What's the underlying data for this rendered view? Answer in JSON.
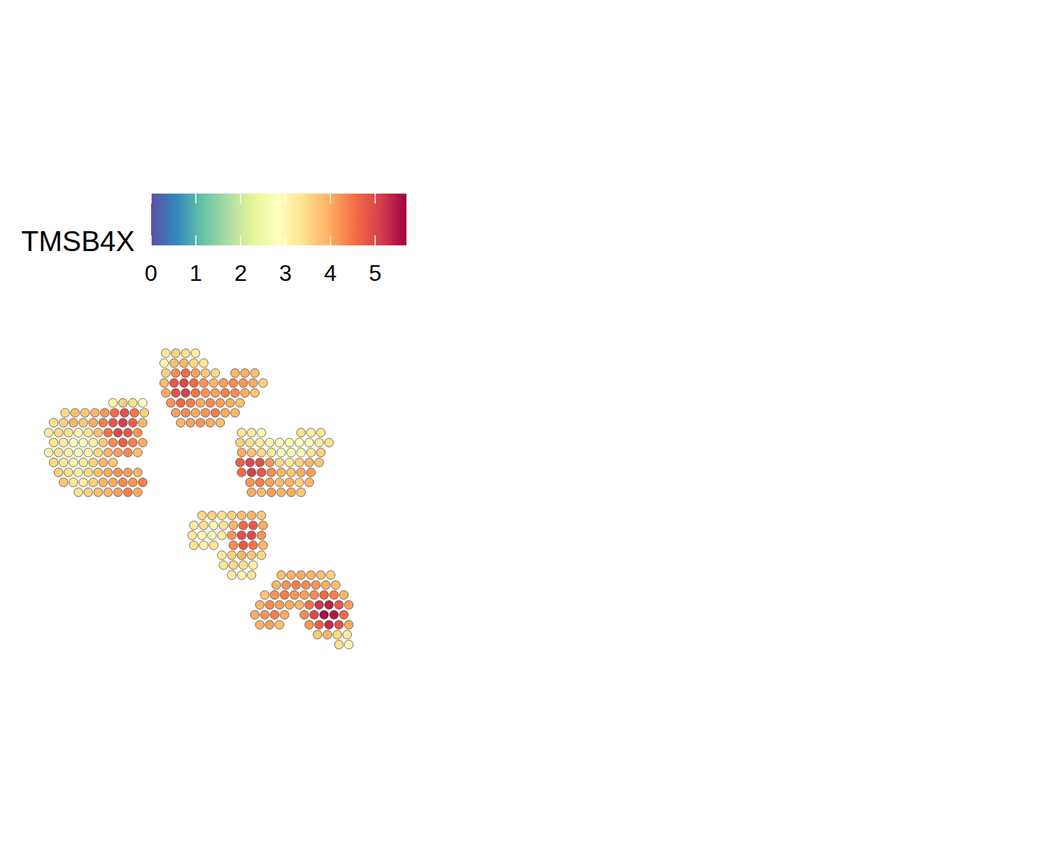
{
  "chart_data": {
    "type": "scatter",
    "xlim": [
      0,
      100
    ],
    "ylim": [
      0,
      100
    ],
    "tick_labels": false,
    "color_bar": {
      "label": "TMSB4X",
      "range": [
        0,
        5.7
      ],
      "ticks": [
        0,
        1,
        2,
        3,
        4,
        5
      ]
    },
    "spots": [
      [
        22,
        79,
        3.0
      ],
      [
        25,
        79,
        3.6
      ],
      [
        28,
        79,
        3.4
      ],
      [
        31,
        79,
        2.8
      ],
      [
        7.5,
        76,
        3.5
      ],
      [
        10.5,
        76,
        3.8
      ],
      [
        13.5,
        76,
        3.7
      ],
      [
        16.5,
        76,
        3.9
      ],
      [
        19.5,
        76,
        4.2
      ],
      [
        22.5,
        76,
        4.6
      ],
      [
        25.5,
        76,
        4.9
      ],
      [
        28.5,
        76,
        4.5
      ],
      [
        31.5,
        76,
        3.6
      ],
      [
        4,
        73,
        3.4
      ],
      [
        7,
        73,
        3.6
      ],
      [
        10,
        73,
        3.9
      ],
      [
        13,
        73,
        3.7
      ],
      [
        16,
        73,
        4.0
      ],
      [
        19,
        73,
        4.4
      ],
      [
        22,
        73,
        4.8
      ],
      [
        25,
        73,
        5.1
      ],
      [
        28,
        73,
        4.7
      ],
      [
        31,
        73,
        3.9
      ],
      [
        2.5,
        70,
        3.2
      ],
      [
        5.5,
        70,
        3.5
      ],
      [
        8.5,
        70,
        3.4
      ],
      [
        11.5,
        70,
        3.0
      ],
      [
        14.5,
        70,
        3.3
      ],
      [
        17.5,
        70,
        3.8
      ],
      [
        20.5,
        70,
        4.5
      ],
      [
        23.5,
        70,
        5.0
      ],
      [
        26.5,
        70,
        4.8
      ],
      [
        29.5,
        70,
        4.2
      ],
      [
        4,
        67,
        3.3
      ],
      [
        7,
        67,
        3.2
      ],
      [
        10,
        67,
        2.9
      ],
      [
        13,
        67,
        2.8
      ],
      [
        16,
        67,
        3.2
      ],
      [
        19,
        67,
        3.7
      ],
      [
        22,
        67,
        4.3
      ],
      [
        25,
        67,
        4.7
      ],
      [
        28,
        67,
        4.4
      ],
      [
        31,
        67,
        4.0
      ],
      [
        2.5,
        64,
        3.0
      ],
      [
        5.5,
        64,
        3.4
      ],
      [
        8.5,
        64,
        3.1
      ],
      [
        11.5,
        64,
        2.7
      ],
      [
        14.5,
        64,
        3.0
      ],
      [
        17.5,
        64,
        3.5
      ],
      [
        20.5,
        64,
        3.9
      ],
      [
        23.5,
        64,
        4.1
      ],
      [
        26.5,
        64,
        4.3
      ],
      [
        29.5,
        64,
        3.8
      ],
      [
        4,
        61,
        3.5
      ],
      [
        7,
        61,
        3.3
      ],
      [
        10,
        61,
        3.0
      ],
      [
        13,
        61,
        3.2
      ],
      [
        16,
        61,
        3.6
      ],
      [
        19,
        61,
        3.9
      ],
      [
        22,
        61,
        3.7
      ],
      [
        5.5,
        58,
        3.6
      ],
      [
        8.5,
        58,
        3.4
      ],
      [
        11.5,
        58,
        3.2
      ],
      [
        14.5,
        58,
        3.5
      ],
      [
        17.5,
        58,
        3.8
      ],
      [
        20.5,
        58,
        4.0
      ],
      [
        23.5,
        58,
        4.2
      ],
      [
        26.5,
        58,
        4.1
      ],
      [
        29.5,
        58,
        3.9
      ],
      [
        7,
        55,
        3.7
      ],
      [
        10,
        55,
        3.3
      ],
      [
        13,
        55,
        3.1
      ],
      [
        16,
        55,
        3.6
      ],
      [
        19,
        55,
        3.9
      ],
      [
        22,
        55,
        4.0
      ],
      [
        25,
        55,
        4.3
      ],
      [
        28,
        55,
        4.2
      ],
      [
        31,
        55,
        4.4
      ],
      [
        11.5,
        52,
        3.4
      ],
      [
        14.5,
        52,
        3.6
      ],
      [
        17.5,
        52,
        3.8
      ],
      [
        20.5,
        52,
        3.9
      ],
      [
        23.5,
        52,
        4.1
      ],
      [
        26.5,
        52,
        4.4
      ],
      [
        29.5,
        52,
        4.0
      ],
      [
        38,
        94,
        3.3
      ],
      [
        41,
        94,
        3.6
      ],
      [
        44,
        94,
        3.4
      ],
      [
        47,
        94,
        3.2
      ],
      [
        37.5,
        91,
        3.0
      ],
      [
        40.5,
        91,
        3.8
      ],
      [
        43.5,
        91,
        3.9
      ],
      [
        46.5,
        91,
        3.5
      ],
      [
        49.5,
        91,
        3.3
      ],
      [
        38,
        88,
        3.6
      ],
      [
        41,
        88,
        4.3
      ],
      [
        44,
        88,
        4.6
      ],
      [
        47,
        88,
        4.1
      ],
      [
        50,
        88,
        3.7
      ],
      [
        53,
        88,
        3.5
      ],
      [
        59,
        88,
        3.9
      ],
      [
        62,
        88,
        4.0
      ],
      [
        65,
        88,
        3.8
      ],
      [
        37.5,
        85,
        3.8
      ],
      [
        40.5,
        85,
        4.8
      ],
      [
        43.5,
        85,
        5.0
      ],
      [
        46.5,
        85,
        4.6
      ],
      [
        49.5,
        85,
        4.2
      ],
      [
        52.5,
        85,
        3.9
      ],
      [
        55.5,
        85,
        4.1
      ],
      [
        58.5,
        85,
        4.3
      ],
      [
        61.5,
        85,
        4.2
      ],
      [
        64.5,
        85,
        4.0
      ],
      [
        67.5,
        85,
        3.6
      ],
      [
        38,
        82,
        4.0
      ],
      [
        41,
        82,
        4.9
      ],
      [
        44,
        82,
        5.1
      ],
      [
        47,
        82,
        4.5
      ],
      [
        50,
        82,
        4.2
      ],
      [
        53,
        82,
        4.1
      ],
      [
        56,
        82,
        4.4
      ],
      [
        59,
        82,
        4.3
      ],
      [
        62,
        82,
        4.0
      ],
      [
        65,
        82,
        3.7
      ],
      [
        39.5,
        79,
        4.2
      ],
      [
        42.5,
        79,
        4.6
      ],
      [
        45.5,
        79,
        4.4
      ],
      [
        48.5,
        79,
        4.0
      ],
      [
        51.5,
        79,
        4.3
      ],
      [
        54.5,
        79,
        4.1
      ],
      [
        57.5,
        79,
        4.0
      ],
      [
        60.5,
        79,
        3.8
      ],
      [
        41,
        76,
        4.1
      ],
      [
        44,
        76,
        4.3
      ],
      [
        47,
        76,
        4.0
      ],
      [
        50,
        76,
        4.2
      ],
      [
        53,
        76,
        4.4
      ],
      [
        56,
        76,
        4.0
      ],
      [
        59,
        76,
        3.9
      ],
      [
        42.5,
        73,
        3.9
      ],
      [
        45.5,
        73,
        4.1
      ],
      [
        48.5,
        73,
        4.2
      ],
      [
        51.5,
        73,
        4.0
      ],
      [
        54.5,
        73,
        3.8
      ],
      [
        61,
        70,
        3.3
      ],
      [
        64,
        70,
        3.2
      ],
      [
        67,
        70,
        3.0
      ],
      [
        79,
        70,
        3.4
      ],
      [
        82,
        70,
        3.1
      ],
      [
        85,
        70,
        3.3
      ],
      [
        60.5,
        67,
        3.6
      ],
      [
        63.5,
        67,
        3.4
      ],
      [
        66.5,
        67,
        3.2
      ],
      [
        69.5,
        67,
        3.0
      ],
      [
        72.5,
        67,
        2.9
      ],
      [
        75.5,
        67,
        3.0
      ],
      [
        78.5,
        67,
        2.8
      ],
      [
        81.5,
        67,
        2.7
      ],
      [
        84.5,
        67,
        3.2
      ],
      [
        87.5,
        67,
        3.4
      ],
      [
        61,
        64,
        4.0
      ],
      [
        64,
        64,
        3.8
      ],
      [
        67,
        64,
        3.5
      ],
      [
        70,
        64,
        3.2
      ],
      [
        73,
        64,
        2.8
      ],
      [
        76,
        64,
        2.7
      ],
      [
        79,
        64,
        2.9
      ],
      [
        82,
        64,
        3.3
      ],
      [
        85,
        64,
        3.6
      ],
      [
        60.5,
        61,
        4.7
      ],
      [
        63.5,
        61,
        5.0
      ],
      [
        66.5,
        61,
        4.9
      ],
      [
        69.5,
        61,
        4.2
      ],
      [
        72.5,
        61,
        3.5
      ],
      [
        75.5,
        61,
        3.2
      ],
      [
        78.5,
        61,
        3.6
      ],
      [
        81.5,
        61,
        3.9
      ],
      [
        84.5,
        61,
        3.7
      ],
      [
        61,
        58,
        4.6
      ],
      [
        64,
        58,
        5.1
      ],
      [
        67,
        58,
        4.8
      ],
      [
        70,
        58,
        4.3
      ],
      [
        73,
        58,
        3.9
      ],
      [
        76,
        58,
        3.7
      ],
      [
        79,
        58,
        4.0
      ],
      [
        82,
        58,
        4.1
      ],
      [
        63.5,
        55,
        4.2
      ],
      [
        66.5,
        55,
        4.4
      ],
      [
        69.5,
        55,
        4.1
      ],
      [
        72.5,
        55,
        3.8
      ],
      [
        75.5,
        55,
        3.9
      ],
      [
        78.5,
        55,
        3.6
      ],
      [
        81.5,
        55,
        3.9
      ],
      [
        64,
        52,
        4.0
      ],
      [
        67,
        52,
        3.8
      ],
      [
        70,
        52,
        4.1
      ],
      [
        73,
        52,
        3.9
      ],
      [
        76,
        52,
        4.0
      ],
      [
        79,
        52,
        3.7
      ],
      [
        49,
        45,
        3.5
      ],
      [
        52,
        45,
        3.6
      ],
      [
        55,
        45,
        3.4
      ],
      [
        58,
        45,
        3.6
      ],
      [
        61,
        45,
        3.8
      ],
      [
        64,
        45,
        3.9
      ],
      [
        67,
        45,
        3.7
      ],
      [
        46.5,
        42,
        3.2
      ],
      [
        49.5,
        42,
        3.4
      ],
      [
        52.5,
        42,
        3.0
      ],
      [
        55.5,
        42,
        3.3
      ],
      [
        58.5,
        42,
        3.9
      ],
      [
        61.5,
        42,
        4.6
      ],
      [
        64.5,
        42,
        4.8
      ],
      [
        67.5,
        42,
        4.0
      ],
      [
        46,
        39,
        3.3
      ],
      [
        49,
        39,
        3.0
      ],
      [
        52,
        39,
        2.9
      ],
      [
        55,
        39,
        3.2
      ],
      [
        58,
        39,
        4.2
      ],
      [
        61,
        39,
        4.9
      ],
      [
        64,
        39,
        5.0
      ],
      [
        67,
        39,
        4.2
      ],
      [
        46.5,
        36,
        3.4
      ],
      [
        49.5,
        36,
        3.1
      ],
      [
        52.5,
        36,
        3.3
      ],
      [
        58.5,
        36,
        4.3
      ],
      [
        61.5,
        36,
        4.8
      ],
      [
        64.5,
        36,
        4.5
      ],
      [
        67.5,
        36,
        3.9
      ],
      [
        55,
        33,
        3.2
      ],
      [
        58,
        33,
        3.6
      ],
      [
        61,
        33,
        3.9
      ],
      [
        64,
        33,
        3.7
      ],
      [
        67,
        33,
        3.5
      ],
      [
        55.5,
        30,
        3.3
      ],
      [
        58.5,
        30,
        3.5
      ],
      [
        61.5,
        30,
        3.4
      ],
      [
        64.5,
        30,
        3.1
      ],
      [
        58,
        27,
        3.2
      ],
      [
        61,
        27,
        3.0
      ],
      [
        64,
        27,
        3.3
      ],
      [
        73,
        27,
        3.8
      ],
      [
        76,
        27,
        3.9
      ],
      [
        79,
        27,
        4.0
      ],
      [
        82,
        27,
        3.9
      ],
      [
        85,
        27,
        3.8
      ],
      [
        88,
        27,
        3.6
      ],
      [
        71.5,
        24,
        3.9
      ],
      [
        74.5,
        24,
        4.2
      ],
      [
        77.5,
        24,
        4.4
      ],
      [
        80.5,
        24,
        4.3
      ],
      [
        83.5,
        24,
        4.2
      ],
      [
        86.5,
        24,
        4.0
      ],
      [
        89.5,
        24,
        3.8
      ],
      [
        68,
        21,
        3.7
      ],
      [
        71,
        21,
        4.2
      ],
      [
        74,
        21,
        4.4
      ],
      [
        77,
        21,
        4.2
      ],
      [
        80,
        21,
        4.1
      ],
      [
        83,
        21,
        4.3
      ],
      [
        86,
        21,
        4.6
      ],
      [
        89,
        21,
        4.4
      ],
      [
        92,
        21,
        3.9
      ],
      [
        66.5,
        18,
        3.9
      ],
      [
        69.5,
        18,
        4.3
      ],
      [
        72.5,
        18,
        4.1
      ],
      [
        75.5,
        18,
        4.0
      ],
      [
        78.5,
        18,
        3.9
      ],
      [
        81.5,
        18,
        4.5
      ],
      [
        84.5,
        18,
        5.2
      ],
      [
        87.5,
        18,
        5.4
      ],
      [
        90.5,
        18,
        4.8
      ],
      [
        93.5,
        18,
        4.1
      ],
      [
        65,
        15,
        4.0
      ],
      [
        68,
        15,
        4.2
      ],
      [
        71,
        15,
        4.4
      ],
      [
        74,
        15,
        4.0
      ],
      [
        80,
        15,
        4.3
      ],
      [
        83,
        15,
        5.0
      ],
      [
        86,
        15,
        5.6
      ],
      [
        89,
        15,
        5.5
      ],
      [
        92,
        15,
        4.6
      ],
      [
        66.5,
        12,
        3.9
      ],
      [
        69.5,
        12,
        4.1
      ],
      [
        72.5,
        12,
        3.8
      ],
      [
        81.5,
        12,
        4.2
      ],
      [
        84.5,
        12,
        4.7
      ],
      [
        87.5,
        12,
        5.3
      ],
      [
        90.5,
        12,
        4.9
      ],
      [
        93.5,
        12,
        4.0
      ],
      [
        84,
        9,
        3.7
      ],
      [
        87,
        9,
        3.9
      ],
      [
        90,
        9,
        3.5
      ],
      [
        93,
        9,
        3.2
      ],
      [
        90.5,
        6,
        3.4
      ],
      [
        93.5,
        6,
        3.0
      ]
    ]
  }
}
